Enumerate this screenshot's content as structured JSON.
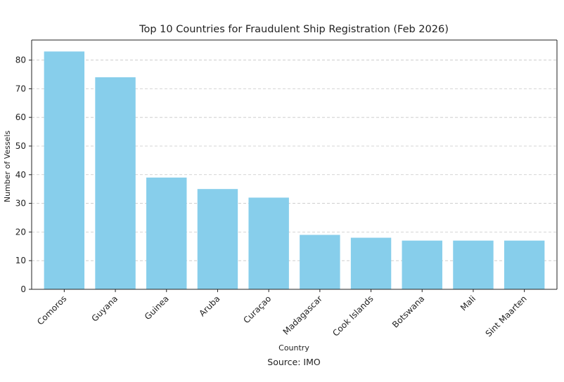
{
  "chart_data": {
    "type": "bar",
    "title": "Top 10 Countries for Fraudulent Ship Registration (Feb 2026)",
    "xlabel": "Country",
    "ylabel": "Number of Vessels",
    "source": "Source: IMO",
    "categories": [
      "Comoros",
      "Guyana",
      "Guinea",
      "Aruba",
      "Curaçao",
      "Madagascar",
      "Cook Islands",
      "Botswana",
      "Mali",
      "Sint Maarten"
    ],
    "values": [
      83,
      74,
      39,
      35,
      32,
      19,
      18,
      17,
      17,
      17
    ],
    "ylim": [
      0,
      87
    ],
    "yticks": [
      0,
      10,
      20,
      30,
      40,
      50,
      60,
      70,
      80
    ],
    "grid": true,
    "grid_axis": "y",
    "bar_color": "#87ceeb"
  }
}
